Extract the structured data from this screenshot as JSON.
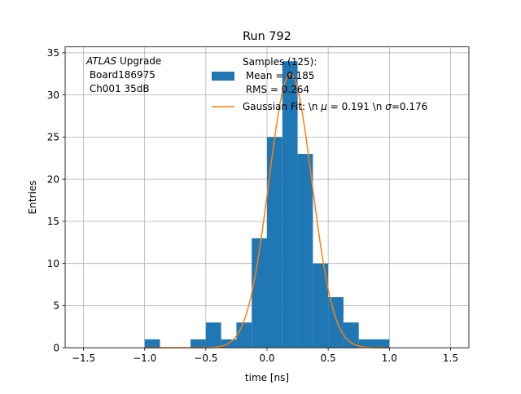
{
  "chart_data": {
    "type": "bar",
    "title": "Run 792",
    "xlabel": "time [ns]",
    "ylabel": "Entries",
    "xlim": [
      -1.65,
      1.65
    ],
    "ylim": [
      0,
      35.7
    ],
    "grid": true,
    "xticks": [
      "−1.5",
      "−1.0",
      "−0.5",
      "0.0",
      "0.5",
      "1.0",
      "1.5"
    ],
    "xtick_values": [
      -1.5,
      -1.0,
      -0.5,
      0.0,
      0.5,
      1.0,
      1.5
    ],
    "yticks": [
      "0",
      "5",
      "10",
      "15",
      "20",
      "25",
      "30",
      "35"
    ],
    "ytick_values": [
      0,
      5,
      10,
      15,
      20,
      25,
      30,
      35
    ],
    "bin_width": 0.125,
    "bins": [
      {
        "x0": -1.0,
        "count": 1
      },
      {
        "x0": -0.625,
        "count": 1
      },
      {
        "x0": -0.5,
        "count": 3
      },
      {
        "x0": -0.375,
        "count": 1
      },
      {
        "x0": -0.25,
        "count": 3
      },
      {
        "x0": -0.125,
        "count": 13
      },
      {
        "x0": 0.0,
        "count": 25
      },
      {
        "x0": 0.125,
        "count": 34
      },
      {
        "x0": 0.25,
        "count": 23
      },
      {
        "x0": 0.375,
        "count": 10
      },
      {
        "x0": 0.5,
        "count": 6
      },
      {
        "x0": 0.625,
        "count": 3
      },
      {
        "x0": 0.75,
        "count": 1
      },
      {
        "x0": 0.875,
        "count": 1
      }
    ],
    "gaussian": {
      "amplitude": 32.5,
      "mu": 0.191,
      "sigma": 0.176
    },
    "series": [
      {
        "name_lines": [
          "Samples (125):",
          " Mean = 0.185",
          " RMS = 0.264"
        ],
        "color": "#1f77b4",
        "kind": "histogram"
      },
      {
        "name_prefix": "Gaussian Fit: \\n ",
        "name_mu": "μ",
        "name_mid": " = 0.191 \\n ",
        "name_sigma": "σ",
        "name_suffix": "=0.176",
        "color": "#ff7f0e",
        "kind": "line"
      }
    ],
    "annotation": {
      "italic": "ATLAS",
      "rest": " Upgrade",
      "line2": " Board186975",
      "line3": " Ch001 35dB"
    },
    "legend_location": "top-center"
  }
}
